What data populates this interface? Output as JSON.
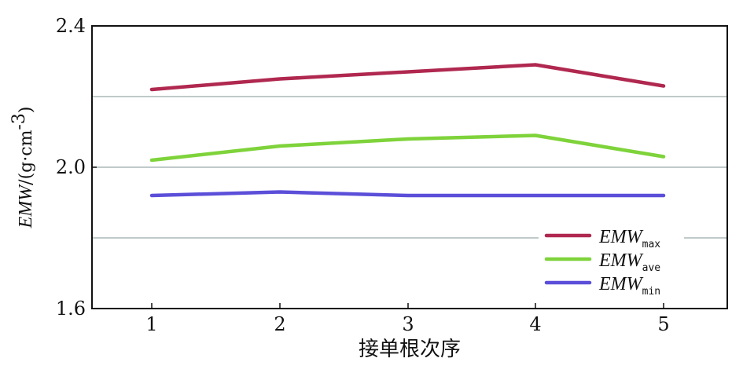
{
  "chart_data": {
    "type": "line",
    "categories": [
      "1",
      "2",
      "3",
      "4",
      "5"
    ],
    "xlabel": "接单根次序",
    "ylabel": {
      "main": "EMW",
      "unit_open": "/(g",
      "unit_mid": "·cm",
      "unit_sup": "-3",
      "unit_close": ")"
    },
    "ylim": [
      1.6,
      2.4
    ],
    "yticks": [
      "1.6",
      "2.0",
      "2.4"
    ],
    "gridlines": [
      1.8,
      2.0,
      2.2
    ],
    "legend_position": "bottom-right",
    "series": [
      {
        "name": "EMW",
        "sub": "max",
        "color": "#b0284f",
        "values": [
          2.22,
          2.25,
          2.27,
          2.29,
          2.23
        ]
      },
      {
        "name": "EMW",
        "sub": "ave",
        "color": "#7ed33a",
        "values": [
          2.02,
          2.06,
          2.08,
          2.09,
          2.03
        ]
      },
      {
        "name": "EMW",
        "sub": "min",
        "color": "#5b4fd9",
        "values": [
          1.92,
          1.93,
          1.92,
          1.92,
          1.92
        ]
      }
    ]
  }
}
